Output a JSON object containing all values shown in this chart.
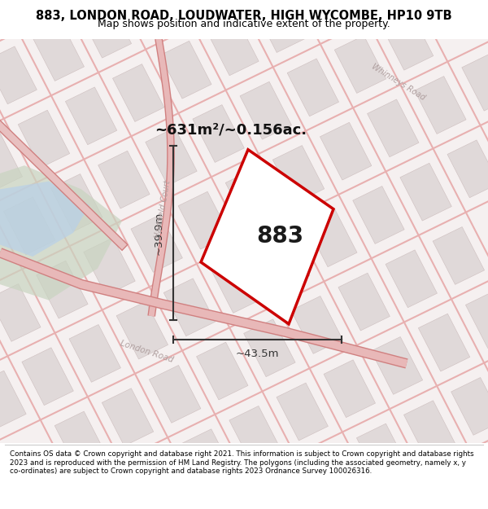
{
  "title_line1": "883, LONDON ROAD, LOUDWATER, HIGH WYCOMBE, HP10 9TB",
  "title_line2": "Map shows position and indicative extent of the property.",
  "plot_number": "883",
  "area_text": "~631m²/~0.156ac.",
  "width_label": "~43.5m",
  "height_label": "~39.9m",
  "map_bg": "#f7f3f3",
  "footer_text": "Contains OS data © Crown copyright and database right 2021. This information is subject to Crown copyright and database rights 2023 and is reproduced with the permission of HM Land Registry. The polygons (including the associated geometry, namely x, y co-ordinates) are subject to Crown copyright and database rights 2023 Ordnance Survey 100026316.",
  "plot_fill": "#ffffff",
  "plot_edge": "#cc0000",
  "road_line_color": "#e8aaaa",
  "road_line_color2": "#d09090",
  "building_fill": "#ddd5d5",
  "building_edge": "#c8b8b8",
  "dim_color": "#333333",
  "road_label_color": "#b0a0a0",
  "green_fill": "#c8d4c0",
  "water_fill": "#b8d0e8"
}
